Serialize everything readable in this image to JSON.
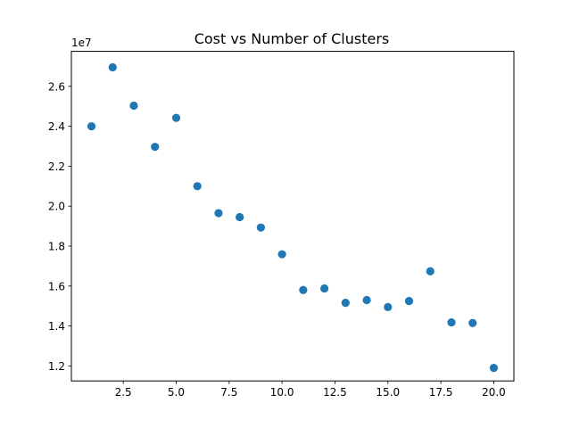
{
  "chart_data": {
    "type": "scatter",
    "title": "Cost vs Number of Clusters",
    "xlabel": "",
    "ylabel": "",
    "xlim": [
      0.05,
      20.95
    ],
    "ylim": [
      11250000,
      27750000
    ],
    "y_offset_label": "1e7",
    "grid": false,
    "color": "#1f77b4",
    "x_ticks": [
      2.5,
      5.0,
      7.5,
      10.0,
      12.5,
      15.0,
      17.5,
      20.0
    ],
    "x_tick_labels": [
      "2.5",
      "5.0",
      "7.5",
      "10.0",
      "12.5",
      "15.0",
      "17.5",
      "20.0"
    ],
    "y_ticks": [
      12000000,
      14000000,
      16000000,
      18000000,
      20000000,
      22000000,
      24000000,
      26000000
    ],
    "y_tick_labels": [
      "1.2",
      "1.4",
      "1.6",
      "1.8",
      "2.0",
      "2.2",
      "2.4",
      "2.6"
    ],
    "series": [
      {
        "x": [
          1,
          2,
          3,
          4,
          5,
          6,
          7,
          8,
          9,
          10,
          11,
          12,
          13,
          14,
          15,
          16,
          17,
          18,
          19,
          20
        ],
        "y": [
          24000000,
          26950000,
          25030000,
          22970000,
          24420000,
          21000000,
          19650000,
          19450000,
          18930000,
          17590000,
          15800000,
          15880000,
          15160000,
          15300000,
          14950000,
          15250000,
          16740000,
          14180000,
          14150000,
          11900000
        ]
      }
    ]
  }
}
